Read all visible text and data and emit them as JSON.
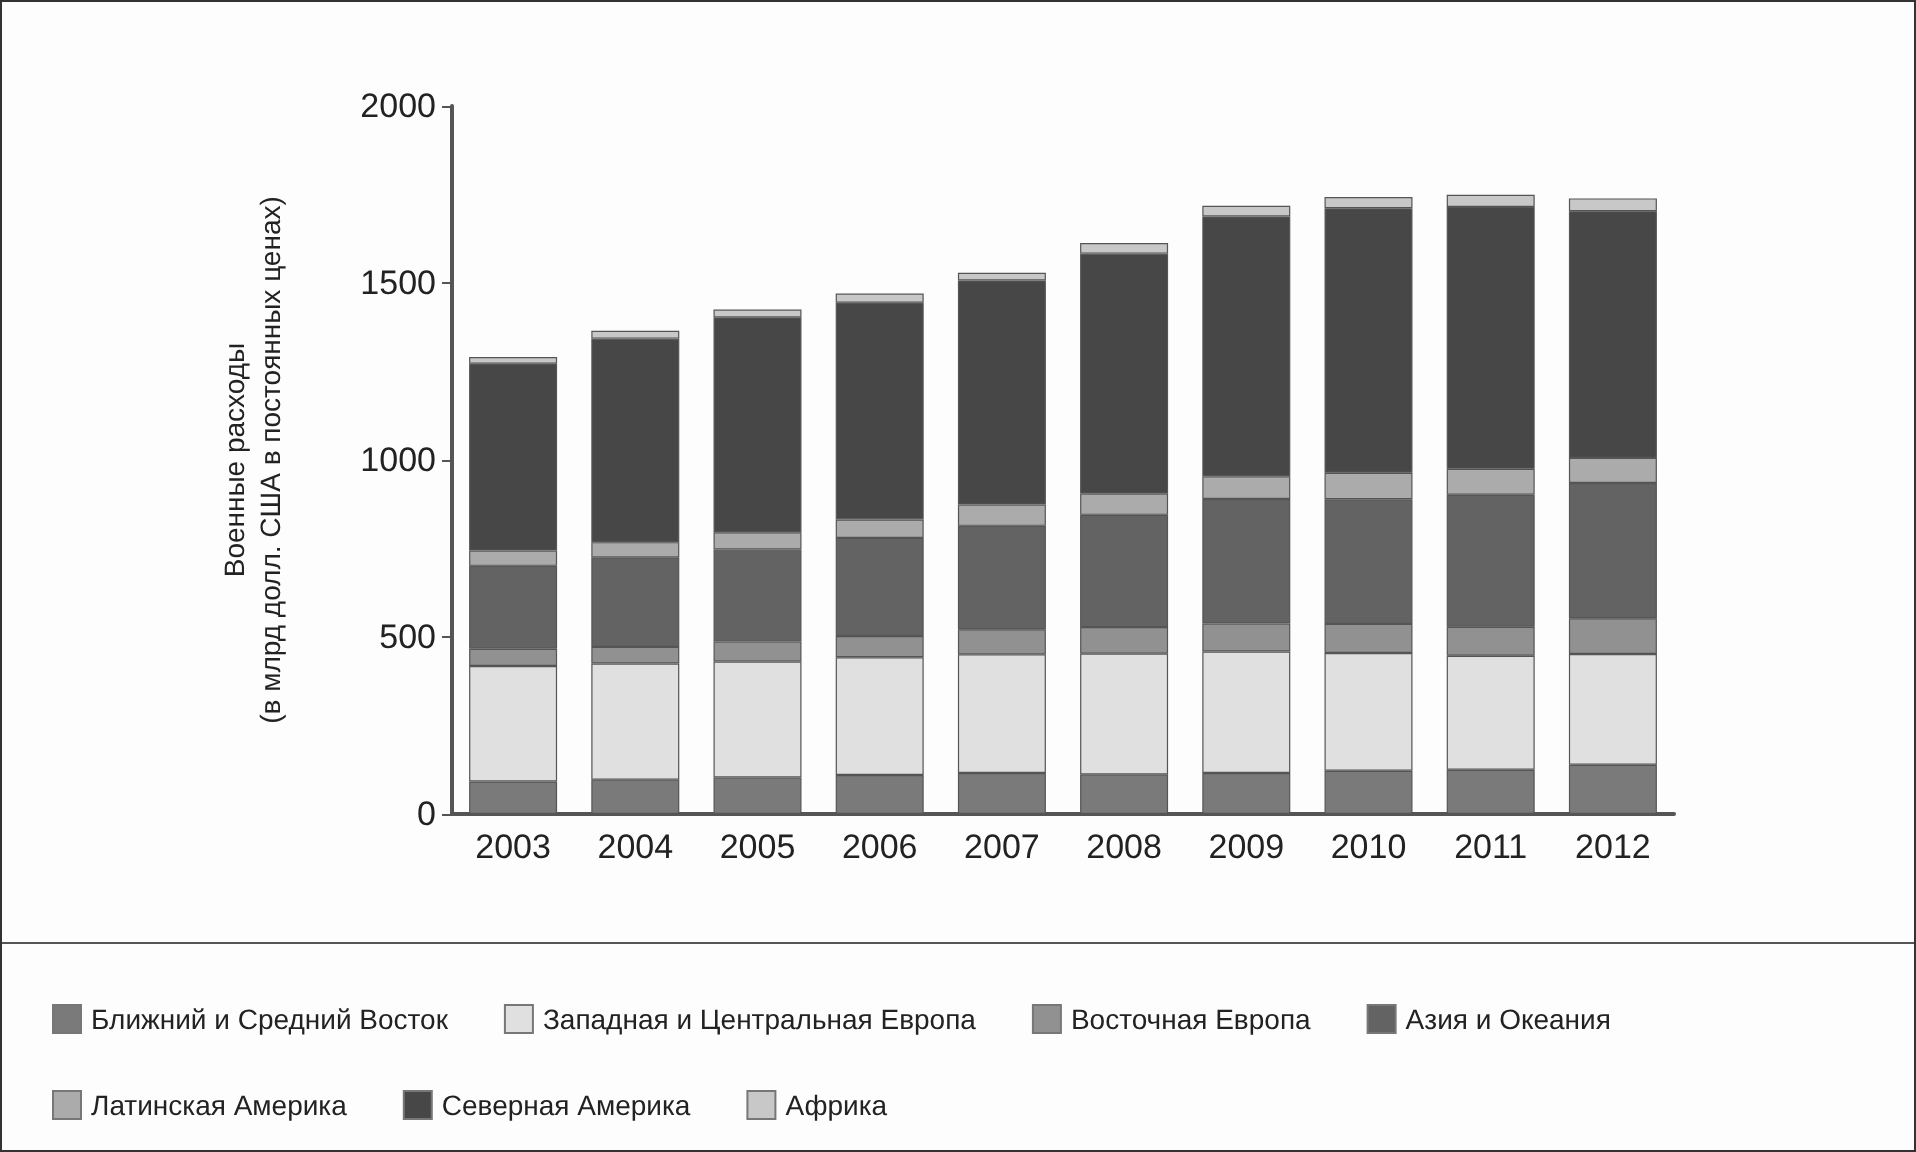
{
  "chart_data": {
    "type": "bar",
    "stacked": true,
    "ylabel": "Военные расходы\n(в млрд долл. США в постоянных ценах)",
    "categories": [
      "2003",
      "2004",
      "2005",
      "2006",
      "2007",
      "2008",
      "2009",
      "2010",
      "2011",
      "2012"
    ],
    "series": [
      {
        "name": "Ближний и Средний Восток",
        "color": "#7a7a7a",
        "values": [
          92,
          97,
          103,
          110,
          116,
          112,
          116,
          122,
          125,
          139
        ]
      },
      {
        "name": "Западная и Центральная Европа",
        "color": "#e0e0e0",
        "values": [
          326,
          328,
          328,
          333,
          335,
          341,
          343,
          333,
          322,
          313
        ]
      },
      {
        "name": "Восточная Европа",
        "color": "#919191",
        "values": [
          49,
          47,
          56,
          60,
          71,
          75,
          79,
          82,
          82,
          101
        ]
      },
      {
        "name": "Азия и Океания",
        "color": "#636363",
        "values": [
          234,
          253,
          260,
          277,
          292,
          317,
          352,
          352,
          373,
          382
        ]
      },
      {
        "name": "Латинская Америка",
        "color": "#ababab",
        "values": [
          43,
          43,
          49,
          52,
          60,
          60,
          64,
          75,
          73,
          71
        ]
      },
      {
        "name": "Северная Америка",
        "color": "#474747",
        "values": [
          528,
          575,
          607,
          612,
          633,
          678,
          734,
          747,
          740,
          697
        ]
      },
      {
        "name": "Африка",
        "color": "#c8c8c8",
        "values": [
          19,
          22,
          22,
          26,
          22,
          30,
          30,
          32,
          34,
          36
        ]
      }
    ],
    "ylim": [
      0,
      2000
    ],
    "yticks": [
      0,
      500,
      1000,
      1500,
      2000
    ],
    "grid": false,
    "legend": "bottom"
  }
}
